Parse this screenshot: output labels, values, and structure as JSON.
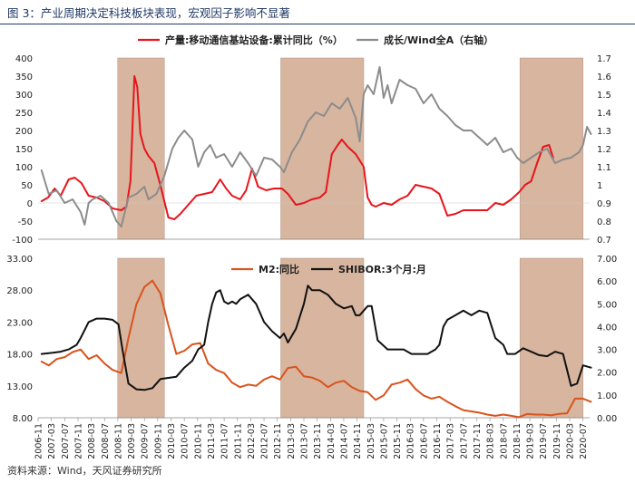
{
  "title": "图 3：产业周期决定科技板块表现，宏观因子影响不显著",
  "source": "资料来源：Wind，天风证券研究所",
  "colors": {
    "red": "#e8141b",
    "gray": "#8c8c8c",
    "orange": "#d9541e",
    "black": "#111111",
    "shade": "#d7b59f",
    "shade_border": "#b99c88",
    "title": "#1f3864"
  },
  "chart_data": [
    {
      "type": "line",
      "title": "",
      "left_axis": {
        "min": -100,
        "max": 400,
        "ticks": [
          "-100",
          "-50",
          "0",
          "50",
          "100",
          "150",
          "200",
          "250",
          "300",
          "350",
          "400"
        ]
      },
      "right_axis": {
        "min": 0.7,
        "max": 1.7,
        "ticks": [
          "0.7",
          "0.8",
          "0.9",
          "1",
          "1.1",
          "1.2",
          "1.3",
          "1.4",
          "1.5",
          "1.6",
          "1.7"
        ]
      },
      "series": [
        {
          "name": "产量:移动通信基站设备:累计同比（%）",
          "axis": "left",
          "color": "red",
          "x": [
            2006.92,
            2007.08,
            2007.25,
            2007.4,
            2007.6,
            2007.75,
            2007.92,
            2008.1,
            2008.3,
            2008.5,
            2008.7,
            2008.92,
            2009.05,
            2009.15,
            2009.25,
            2009.32,
            2009.4,
            2009.5,
            2009.6,
            2009.75,
            2009.92,
            2010.1,
            2010.25,
            2010.4,
            2010.6,
            2010.8,
            2011.0,
            2011.2,
            2011.4,
            2011.55,
            2011.7,
            2011.9,
            2012.05,
            2012.2,
            2012.35,
            2012.55,
            2012.75,
            2012.95,
            2013.1,
            2013.3,
            2013.5,
            2013.7,
            2013.9,
            2014.05,
            2014.2,
            2014.35,
            2014.45,
            2014.6,
            2014.8,
            2015.0,
            2015.1,
            2015.2,
            2015.3,
            2015.5,
            2015.7,
            2015.9,
            2016.1,
            2016.3,
            2016.5,
            2016.7,
            2016.9,
            2017.1,
            2017.3,
            2017.5,
            2017.7,
            2017.9,
            2018.1,
            2018.3,
            2018.5,
            2018.7,
            2018.9,
            2019.05,
            2019.2,
            2019.35,
            2019.5,
            2019.65,
            2019.75
          ],
          "values": [
            5,
            15,
            40,
            20,
            65,
            70,
            55,
            20,
            15,
            5,
            -15,
            -20,
            -10,
            60,
            350,
            320,
            190,
            150,
            130,
            110,
            40,
            -40,
            -45,
            -30,
            -5,
            20,
            25,
            30,
            65,
            40,
            20,
            10,
            35,
            95,
            45,
            35,
            40,
            40,
            25,
            -5,
            0,
            10,
            15,
            30,
            135,
            160,
            175,
            155,
            135,
            100,
            15,
            -5,
            -10,
            0,
            -5,
            10,
            20,
            50,
            45,
            40,
            25,
            -35,
            -30,
            -20,
            -20,
            -20,
            -20,
            0,
            -5,
            10,
            30,
            50,
            60,
            110,
            155,
            160,
            125
          ]
        },
        {
          "name": "成长/Wind全A（右轴）",
          "axis": "right",
          "color": "gray",
          "x": [
            2006.92,
            2007.1,
            2007.3,
            2007.5,
            2007.7,
            2007.9,
            2008.0,
            2008.1,
            2008.2,
            2008.4,
            2008.6,
            2008.8,
            2008.92,
            2009.1,
            2009.3,
            2009.5,
            2009.6,
            2009.8,
            2010.0,
            2010.2,
            2010.35,
            2010.5,
            2010.7,
            2010.85,
            2011.0,
            2011.15,
            2011.3,
            2011.5,
            2011.7,
            2011.9,
            2012.1,
            2012.3,
            2012.5,
            2012.7,
            2012.9,
            2013.0,
            2013.2,
            2013.4,
            2013.6,
            2013.8,
            2014.0,
            2014.2,
            2014.4,
            2014.6,
            2014.8,
            2014.9,
            2015.0,
            2015.1,
            2015.25,
            2015.4,
            2015.5,
            2015.6,
            2015.7,
            2015.9,
            2016.1,
            2016.3,
            2016.5,
            2016.7,
            2016.9,
            2017.1,
            2017.3,
            2017.5,
            2017.7,
            2017.9,
            2018.1,
            2018.3,
            2018.5,
            2018.7,
            2018.85,
            2019.0,
            2019.2,
            2019.4,
            2019.6,
            2019.8,
            2020.0,
            2020.2,
            2020.4,
            2020.5,
            2020.6,
            2020.7
          ],
          "values": [
            1.08,
            0.95,
            0.97,
            0.9,
            0.92,
            0.85,
            0.78,
            0.9,
            0.92,
            0.94,
            0.9,
            0.8,
            0.77,
            0.93,
            0.95,
            0.99,
            0.92,
            0.95,
            1.05,
            1.2,
            1.26,
            1.3,
            1.25,
            1.1,
            1.18,
            1.22,
            1.15,
            1.17,
            1.1,
            1.18,
            1.12,
            1.05,
            1.15,
            1.14,
            1.1,
            1.07,
            1.18,
            1.25,
            1.35,
            1.4,
            1.38,
            1.45,
            1.42,
            1.48,
            1.37,
            1.24,
            1.5,
            1.55,
            1.5,
            1.65,
            1.48,
            1.55,
            1.45,
            1.58,
            1.55,
            1.53,
            1.45,
            1.5,
            1.42,
            1.38,
            1.33,
            1.3,
            1.3,
            1.26,
            1.22,
            1.26,
            1.18,
            1.2,
            1.15,
            1.12,
            1.15,
            1.18,
            1.2,
            1.12,
            1.14,
            1.15,
            1.18,
            1.22,
            1.32,
            1.28
          ]
        }
      ],
      "shaded_periods": [
        [
          2008.83,
          2010.0
        ],
        [
          2012.92,
          2015.0
        ],
        [
          2018.92,
          2020.5
        ]
      ]
    },
    {
      "type": "line",
      "title": "",
      "left_axis": {
        "min": 8,
        "max": 33,
        "ticks": [
          "8.00",
          "13.00",
          "18.00",
          "23.00",
          "28.00",
          "33.00"
        ]
      },
      "right_axis": {
        "min": 0,
        "max": 7,
        "ticks": [
          "0.00",
          "1.00",
          "2.00",
          "3.00",
          "4.00",
          "5.00",
          "6.00",
          "7.00"
        ]
      },
      "series": [
        {
          "name": "M2:同比",
          "axis": "left",
          "color": "orange",
          "x": [
            2006.92,
            2007.1,
            2007.3,
            2007.5,
            2007.7,
            2007.9,
            2008.1,
            2008.3,
            2008.5,
            2008.7,
            2008.92,
            2009.1,
            2009.3,
            2009.5,
            2009.7,
            2009.9,
            2010.1,
            2010.3,
            2010.5,
            2010.7,
            2010.9,
            2011.1,
            2011.3,
            2011.5,
            2011.7,
            2011.9,
            2012.1,
            2012.3,
            2012.5,
            2012.7,
            2012.9,
            2013.1,
            2013.3,
            2013.5,
            2013.7,
            2013.9,
            2014.1,
            2014.3,
            2014.5,
            2014.7,
            2014.9,
            2015.1,
            2015.3,
            2015.5,
            2015.7,
            2015.9,
            2016.1,
            2016.3,
            2016.5,
            2016.7,
            2016.9,
            2017.1,
            2017.3,
            2017.5,
            2017.7,
            2017.9,
            2018.1,
            2018.3,
            2018.5,
            2018.7,
            2018.9,
            2019.1,
            2019.3,
            2019.5,
            2019.7,
            2019.9,
            2020.1,
            2020.3,
            2020.5,
            2020.7
          ],
          "values": [
            16.8,
            16.2,
            17.2,
            17.5,
            18.3,
            18.7,
            17.2,
            17.8,
            16.5,
            15.5,
            15.0,
            20.5,
            25.8,
            28.5,
            29.5,
            27.5,
            22.5,
            18.0,
            18.5,
            19.5,
            19.7,
            16.5,
            15.5,
            15.0,
            13.5,
            12.8,
            13.2,
            13.0,
            14.0,
            14.5,
            14.0,
            15.8,
            16.0,
            14.5,
            14.3,
            13.8,
            12.8,
            13.5,
            13.8,
            12.8,
            12.2,
            12.0,
            10.8,
            11.5,
            13.2,
            13.5,
            14.0,
            12.5,
            11.5,
            11.0,
            11.3,
            10.5,
            9.8,
            9.2,
            9.0,
            8.8,
            8.5,
            8.3,
            8.5,
            8.3,
            8.1,
            8.6,
            8.5,
            8.5,
            8.4,
            8.6,
            8.7,
            11.0,
            11.0,
            10.5
          ]
        },
        {
          "name": "SHIBOR:3个月:月",
          "axis": "right",
          "color": "black",
          "x": [
            2006.92,
            2007.2,
            2007.4,
            2007.6,
            2007.8,
            2007.9,
            2008.1,
            2008.3,
            2008.5,
            2008.7,
            2008.85,
            2008.95,
            2009.1,
            2009.3,
            2009.5,
            2009.7,
            2009.9,
            2010.1,
            2010.3,
            2010.5,
            2010.7,
            2010.85,
            2011.0,
            2011.1,
            2011.2,
            2011.3,
            2011.4,
            2011.5,
            2011.6,
            2011.7,
            2011.8,
            2011.9,
            2012.1,
            2012.3,
            2012.5,
            2012.7,
            2012.9,
            2013.0,
            2013.1,
            2013.3,
            2013.5,
            2013.6,
            2013.7,
            2013.9,
            2014.1,
            2014.3,
            2014.5,
            2014.7,
            2014.8,
            2014.9,
            2015.1,
            2015.2,
            2015.35,
            2015.6,
            2015.8,
            2016.0,
            2016.2,
            2016.4,
            2016.6,
            2016.8,
            2016.9,
            2017.0,
            2017.1,
            2017.3,
            2017.5,
            2017.7,
            2017.9,
            2018.1,
            2018.3,
            2018.5,
            2018.6,
            2018.8,
            2019.0,
            2019.2,
            2019.4,
            2019.6,
            2019.8,
            2020.0,
            2020.2,
            2020.35,
            2020.5,
            2020.7
          ],
          "values": [
            2.8,
            2.85,
            2.9,
            3.0,
            3.2,
            3.5,
            4.2,
            4.35,
            4.35,
            4.3,
            4.1,
            3.0,
            1.5,
            1.25,
            1.22,
            1.3,
            1.7,
            1.75,
            1.8,
            2.2,
            2.5,
            3.0,
            3.2,
            4.2,
            5.0,
            5.5,
            5.6,
            5.1,
            5.0,
            5.1,
            5.0,
            5.2,
            5.4,
            5.0,
            4.2,
            3.8,
            3.5,
            3.7,
            3.3,
            3.9,
            5.0,
            5.8,
            5.6,
            5.6,
            5.4,
            5.0,
            4.8,
            4.9,
            4.5,
            4.5,
            4.9,
            4.9,
            3.4,
            3.0,
            3.0,
            3.0,
            2.8,
            2.8,
            2.8,
            3.0,
            3.2,
            4.0,
            4.3,
            4.5,
            4.7,
            4.5,
            4.7,
            4.6,
            3.5,
            3.2,
            2.8,
            2.8,
            3.05,
            2.9,
            2.75,
            2.7,
            2.9,
            2.8,
            1.4,
            1.5,
            2.3,
            2.2
          ]
        }
      ],
      "shaded_periods": [
        [
          2008.83,
          2010.0
        ],
        [
          2012.92,
          2015.0
        ],
        [
          2018.92,
          2020.5
        ]
      ]
    }
  ],
  "x_axis": {
    "start": 2006.833,
    "end": 2020.667,
    "tick_labels": [
      "2006-11",
      "2007-03",
      "2007-07",
      "2007-11",
      "2008-03",
      "2008-07",
      "2008-11",
      "2009-03",
      "2009-07",
      "2009-11",
      "2010-03",
      "2010-07",
      "2010-11",
      "2011-03",
      "2011-07",
      "2011-11",
      "2012-03",
      "2012-07",
      "2012-11",
      "2013-03",
      "2013-07",
      "2013-11",
      "2014-03",
      "2014-07",
      "2014-11",
      "2015-03",
      "2015-07",
      "2015-11",
      "2016-03",
      "2016-07",
      "2016-11",
      "2017-03",
      "2017-07",
      "2017-11",
      "2018-03",
      "2018-07",
      "2018-11",
      "2019-03",
      "2019-07",
      "2019-11",
      "2020-03",
      "2020-07"
    ]
  }
}
